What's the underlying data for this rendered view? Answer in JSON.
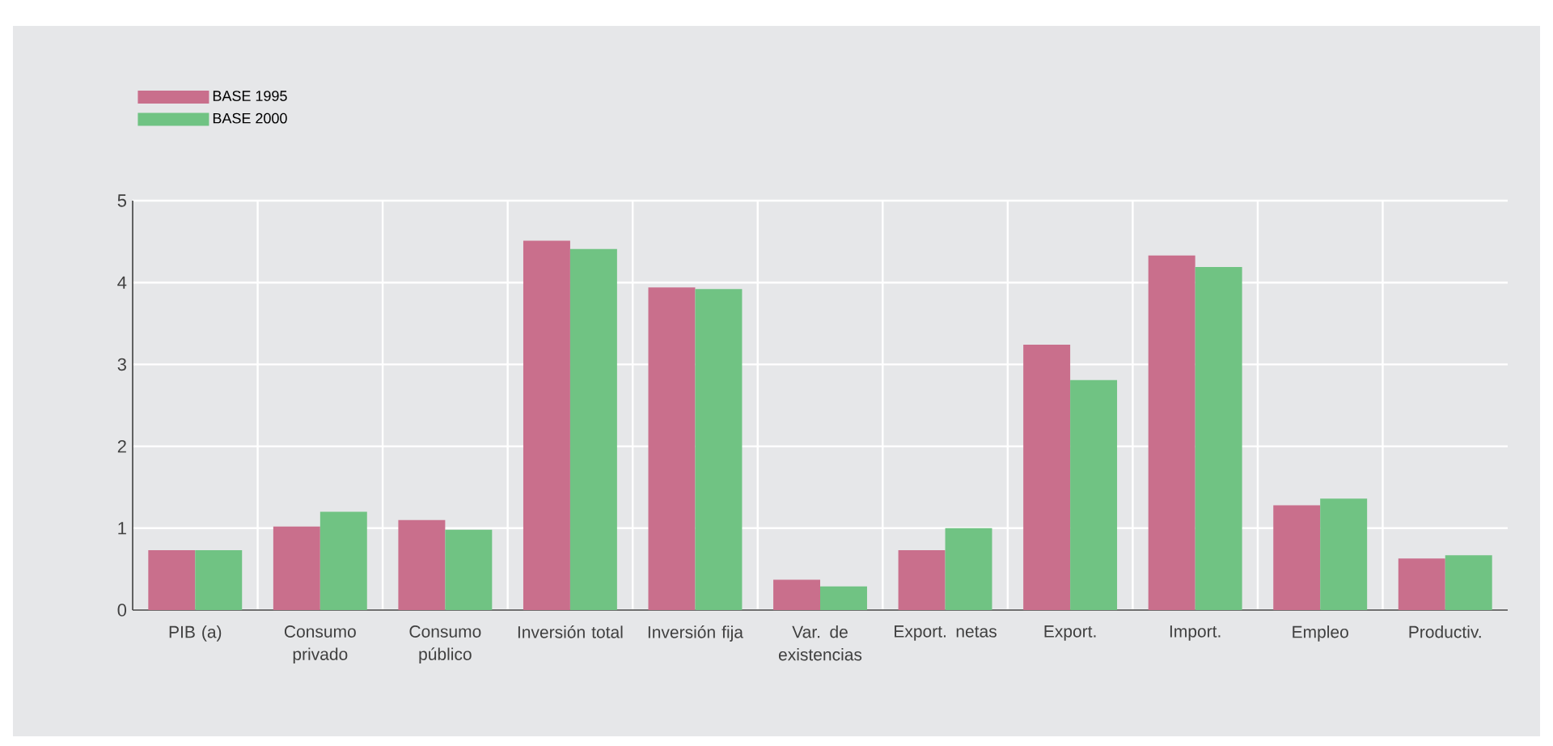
{
  "chart_data": {
    "type": "bar",
    "categories": [
      "PIB (a)",
      "Consumo privado",
      "Consumo público",
      "Inversión total",
      "Inversión fija",
      "Var. de existencias",
      "Export. netas",
      "Export.",
      "Import.",
      "Empleo",
      "Productiv."
    ],
    "series": [
      {
        "name": "BASE 1995",
        "color": "#c96f8c",
        "values": [
          0.73,
          1.02,
          1.1,
          4.51,
          3.94,
          0.37,
          0.73,
          3.24,
          4.33,
          1.28,
          0.63
        ]
      },
      {
        "name": "BASE 2000",
        "color": "#70c383",
        "values": [
          0.73,
          1.2,
          0.98,
          4.41,
          3.92,
          0.29,
          1.0,
          2.81,
          4.19,
          1.36,
          0.67
        ]
      }
    ],
    "ylim": [
      0,
      5
    ],
    "yticks": [
      0,
      1,
      2,
      3,
      4,
      5
    ],
    "grid": true,
    "legend": "top left"
  }
}
